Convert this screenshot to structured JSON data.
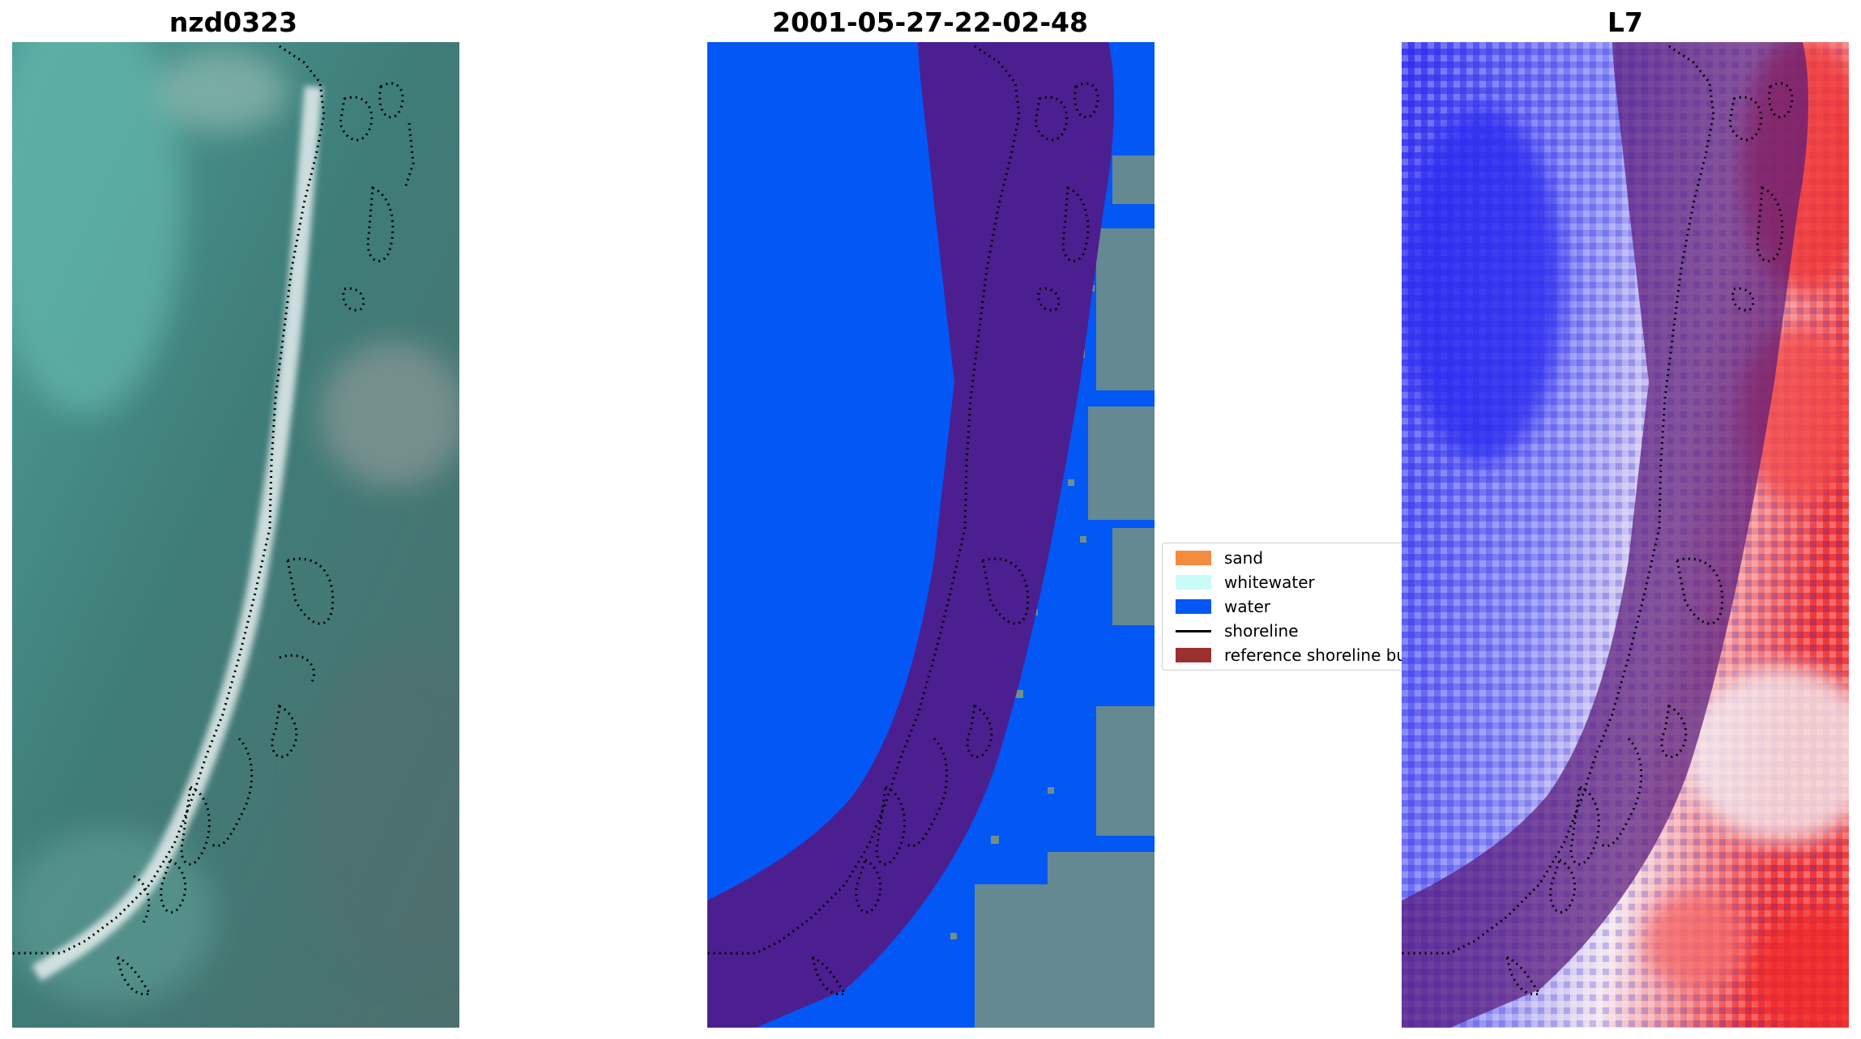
{
  "panels": [
    {
      "title": "nzd0323",
      "icon": "rgb-image"
    },
    {
      "title": "2001-05-27-22-02-48",
      "icon": "classified-image"
    },
    {
      "title": "L7",
      "icon": "mndwi-image"
    }
  ],
  "legend": {
    "items": [
      {
        "label": "sand",
        "color": "#f58b3c",
        "kind": "patch"
      },
      {
        "label": "whitewater",
        "color": "#c9fbf7",
        "kind": "patch"
      },
      {
        "label": "water",
        "color": "#0357f5",
        "kind": "patch"
      },
      {
        "label": "shoreline",
        "color": "#000000",
        "kind": "line"
      },
      {
        "label": "reference shoreline buffer",
        "color": "#9c3030",
        "kind": "patch"
      }
    ]
  },
  "colors": {
    "water_class": "#0357f5",
    "buffer_overlay": "#4b1f8f",
    "index_low": "#1e1ef0",
    "index_high": "#f02020"
  }
}
